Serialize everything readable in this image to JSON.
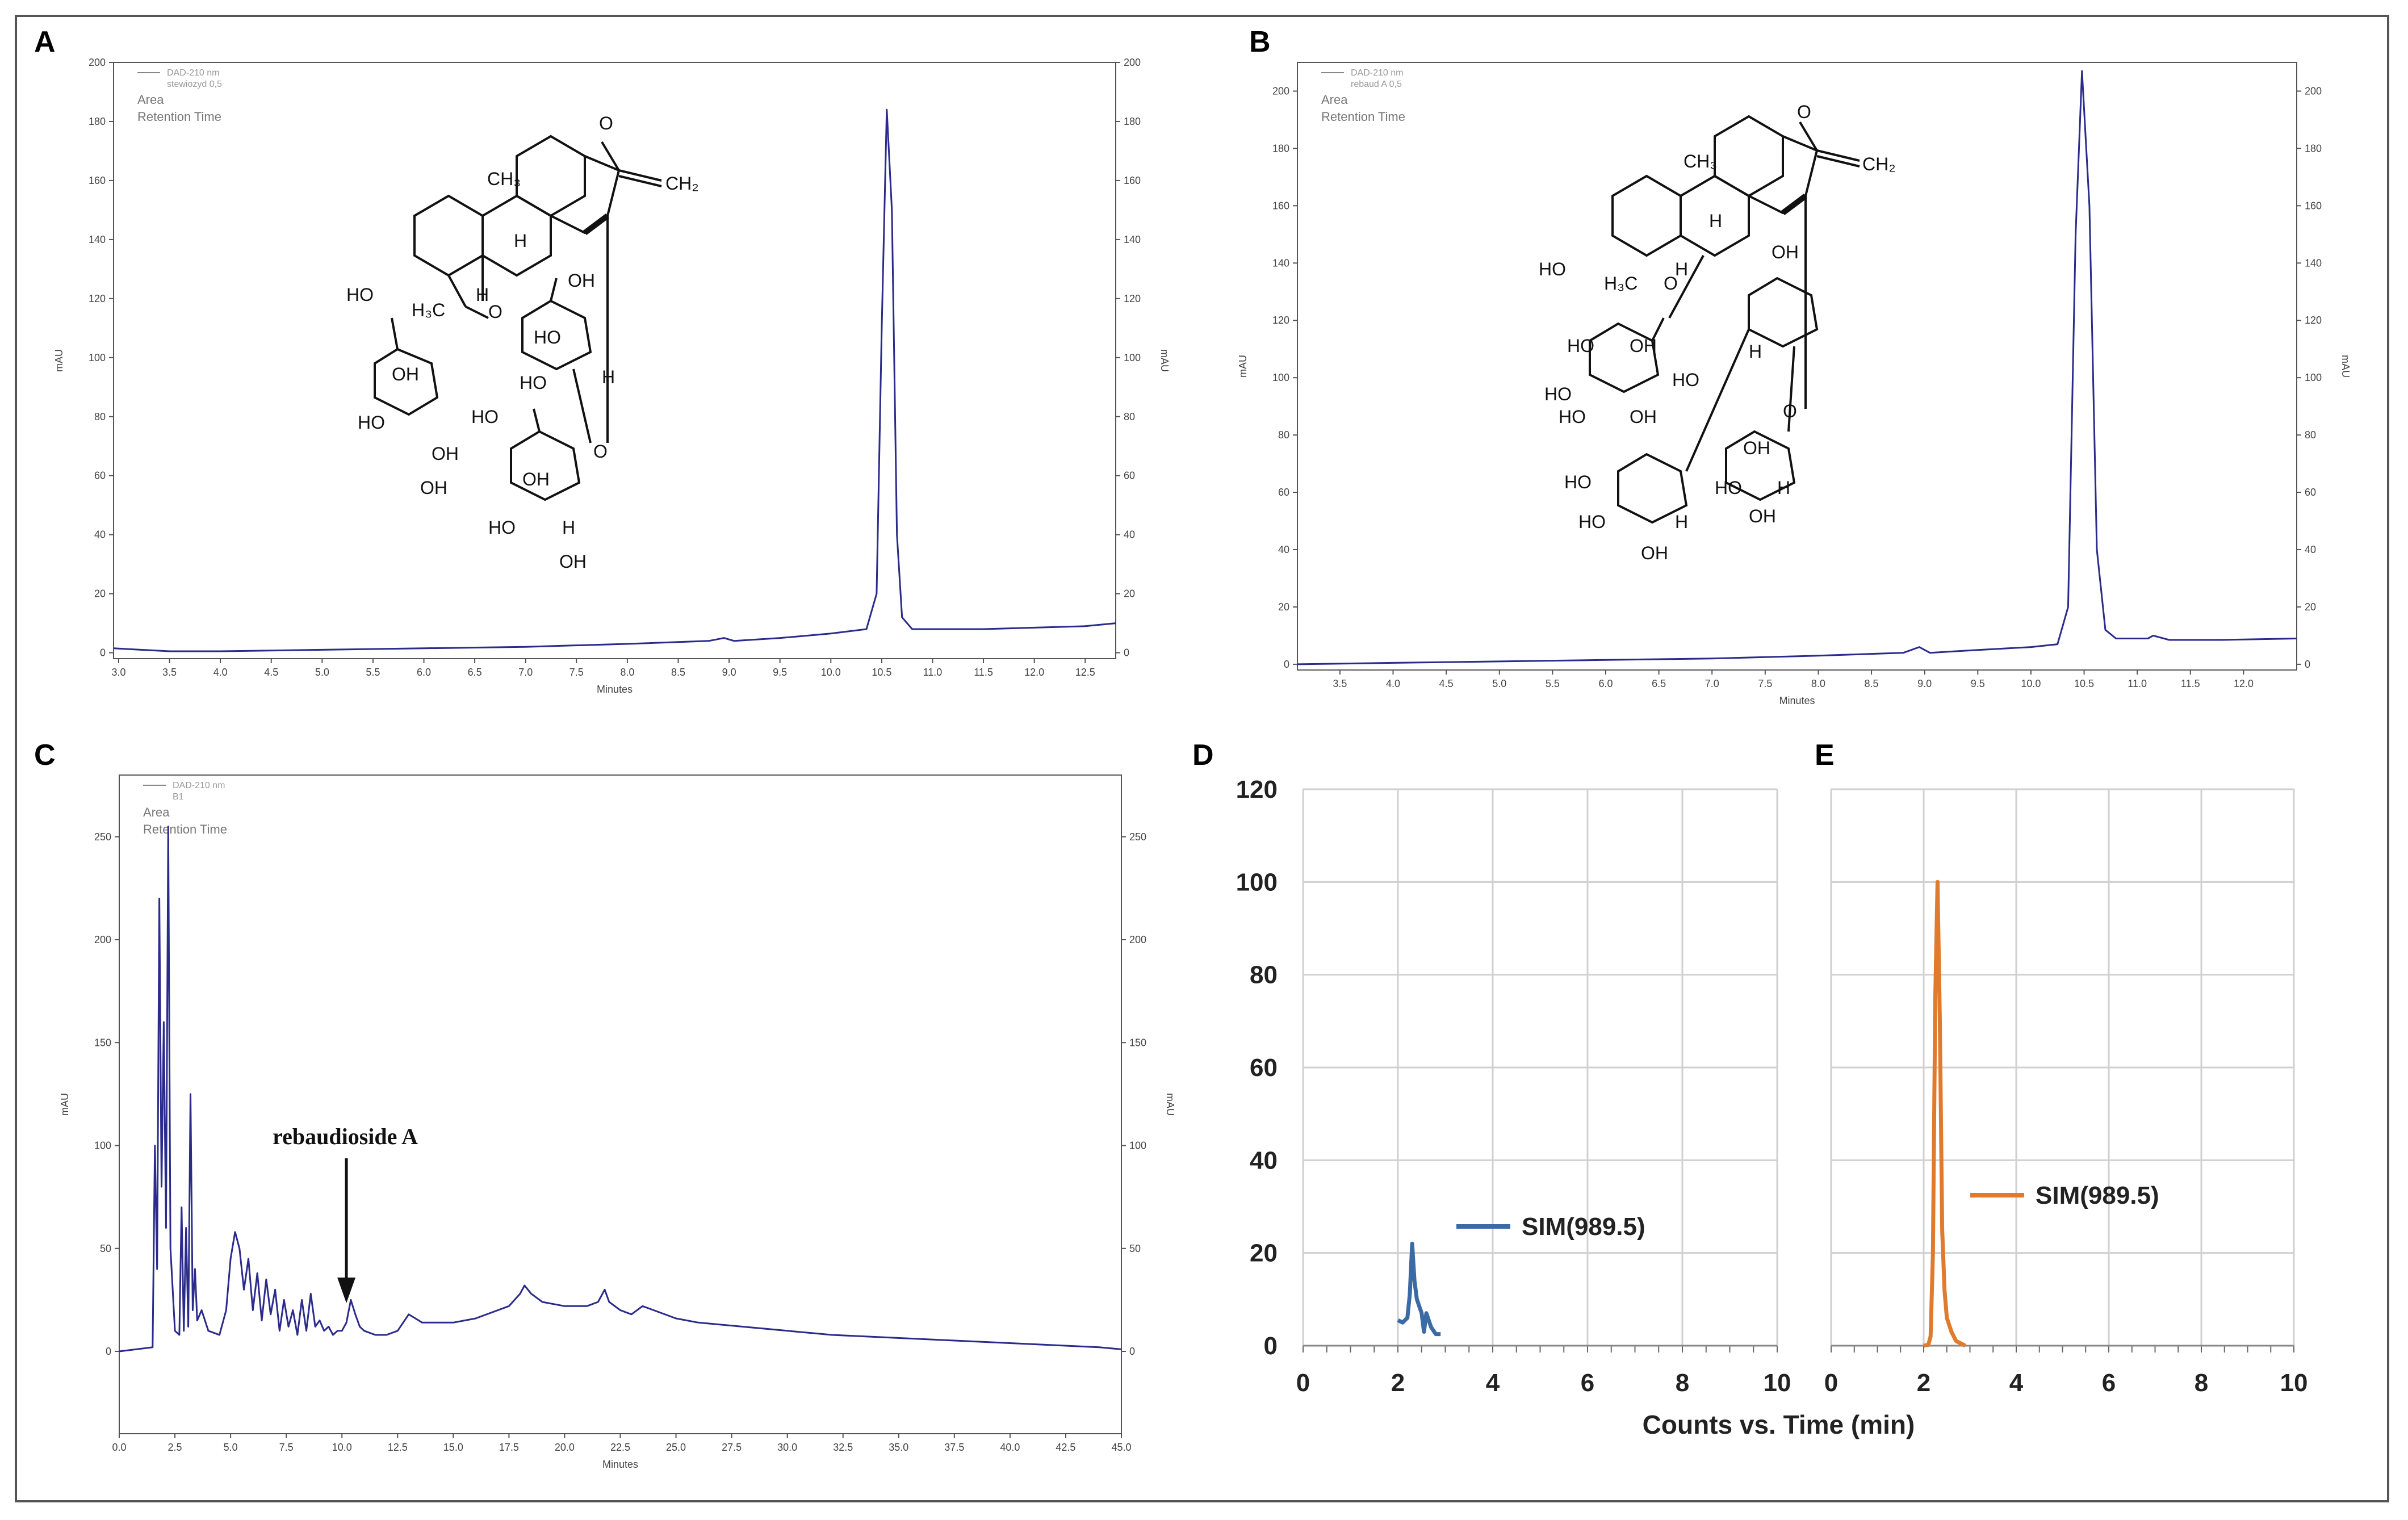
{
  "panels": {
    "A": {
      "label": "A"
    },
    "B": {
      "label": "B"
    },
    "C": {
      "label": "C"
    },
    "D": {
      "label": "D"
    },
    "E": {
      "label": "E"
    }
  },
  "chart_data": [
    {
      "id": "A",
      "type": "line",
      "legend": {
        "line1": "DAD-210 nm",
        "line2": "stewiozyd 0,5",
        "line3": "Area",
        "line4": "Retention Time"
      },
      "xlabel": "Minutes",
      "ylabel": "mAU",
      "ylabel_right": "mAU",
      "xlim": [
        2.95,
        12.8
      ],
      "ylim": [
        -2,
        200
      ],
      "xticks": [
        "3.0",
        "3.5",
        "4.0",
        "4.5",
        "5.0",
        "5.5",
        "6.0",
        "6.5",
        "7.0",
        "7.5",
        "8.0",
        "8.5",
        "9.0",
        "9.5",
        "10.0",
        "10.5",
        "11.0",
        "11.5",
        "12.0",
        "12.5"
      ],
      "yticks": [
        "0",
        "20",
        "40",
        "60",
        "80",
        "100",
        "120",
        "140",
        "160",
        "180",
        "200"
      ],
      "series": [
        {
          "name": "DAD-210 nm",
          "color": "#2b2b8c",
          "x": [
            2.95,
            3.5,
            4,
            5,
            6,
            7,
            8,
            8.8,
            8.95,
            9.05,
            9.5,
            10,
            10.35,
            10.45,
            10.5,
            10.55,
            10.6,
            10.65,
            10.7,
            10.8,
            11,
            11.5,
            12,
            12.5,
            12.8
          ],
          "y": [
            1.5,
            0.5,
            0.5,
            1,
            1.5,
            2,
            3,
            4,
            5,
            4,
            5,
            6.5,
            8,
            20,
            110,
            184,
            150,
            40,
            12,
            8,
            8,
            8,
            8.5,
            9,
            10
          ]
        }
      ],
      "structure": {
        "ch3": "CH₃",
        "ch2": "CH₂",
        "h3c": "H₃C",
        "o": "O",
        "h": "H",
        "ho": "HO",
        "oh": "OH"
      }
    },
    {
      "id": "B",
      "type": "line",
      "legend": {
        "line1": "DAD-210 nm",
        "line2": "rebaud A 0,5",
        "line3": "Area",
        "line4": "Retention Time"
      },
      "xlabel": "Minutes",
      "ylabel": "mAU",
      "ylabel_right": "mAU",
      "xlim": [
        3.1,
        12.5
      ],
      "ylim": [
        -2,
        210
      ],
      "xticks": [
        "3.5",
        "4.0",
        "4.5",
        "5.0",
        "5.5",
        "6.0",
        "6.5",
        "7.0",
        "7.5",
        "8.0",
        "8.5",
        "9.0",
        "9.5",
        "10.0",
        "10.5",
        "11.0",
        "11.5",
        "12.0"
      ],
      "yticks": [
        "0",
        "20",
        "40",
        "60",
        "80",
        "100",
        "120",
        "140",
        "160",
        "180",
        "200"
      ],
      "series": [
        {
          "name": "DAD-210 nm",
          "color": "#2b2b8c",
          "x": [
            3.1,
            4,
            5,
            6,
            7,
            8,
            8.8,
            8.95,
            9.05,
            9.5,
            10,
            10.25,
            10.35,
            10.42,
            10.48,
            10.55,
            10.62,
            10.7,
            10.8,
            11.1,
            11.15,
            11.3,
            11.8,
            12.5
          ],
          "y": [
            0,
            0.5,
            1,
            1.5,
            2,
            3,
            4,
            6,
            4,
            5,
            6,
            7,
            20,
            150,
            207,
            160,
            40,
            12,
            9,
            9,
            10,
            8.5,
            8.5,
            9
          ]
        }
      ],
      "structure": {
        "ch3": "CH₃",
        "ch2": "CH₂",
        "h3c": "H₃C",
        "o": "O",
        "h": "H",
        "ho": "HO",
        "oh": "OH"
      }
    },
    {
      "id": "C",
      "type": "line",
      "legend": {
        "line1": "DAD-210 nm",
        "line2": "B1",
        "line3": "Area",
        "line4": "Retention Time"
      },
      "xlabel": "Minutes",
      "ylabel": "mAU",
      "ylabel_right": "mAU",
      "xlim": [
        0,
        45
      ],
      "ylim": [
        -40,
        280
      ],
      "xticks": [
        "0.0",
        "2.5",
        "5.0",
        "7.5",
        "10.0",
        "12.5",
        "15.0",
        "17.5",
        "20.0",
        "22.5",
        "25.0",
        "27.5",
        "30.0",
        "32.5",
        "35.0",
        "37.5",
        "40.0",
        "42.5",
        "45.0"
      ],
      "yticks": [
        "0",
        "50",
        "100",
        "150",
        "200",
        "250"
      ],
      "annotation": "rebaudioside A",
      "series": [
        {
          "name": "DAD-210 nm",
          "color": "#2b2b8c",
          "x": [
            0,
            1.5,
            1.6,
            1.7,
            1.8,
            1.9,
            2.0,
            2.1,
            2.2,
            2.3,
            2.5,
            2.7,
            2.8,
            2.9,
            3.0,
            3.1,
            3.2,
            3.3,
            3.4,
            3.5,
            3.7,
            4.0,
            4.5,
            4.8,
            5.0,
            5.2,
            5.4,
            5.6,
            5.8,
            6.0,
            6.2,
            6.4,
            6.6,
            6.8,
            7.0,
            7.2,
            7.4,
            7.6,
            7.8,
            8.0,
            8.2,
            8.4,
            8.6,
            8.8,
            9.0,
            9.2,
            9.4,
            9.6,
            9.8,
            10.0,
            10.2,
            10.4,
            10.6,
            10.8,
            11.0,
            11.5,
            12.0,
            12.5,
            13.0,
            13.3,
            13.6,
            14,
            15,
            16,
            17,
            17.5,
            18,
            18.2,
            18.5,
            19,
            20,
            21,
            21.5,
            21.8,
            22,
            22.5,
            23,
            23.5,
            24,
            25,
            26,
            27,
            28,
            30,
            32,
            34,
            36,
            38,
            40,
            42,
            44,
            45
          ],
          "y": [
            0,
            2,
            100,
            40,
            220,
            80,
            160,
            60,
            255,
            50,
            10,
            8,
            70,
            10,
            60,
            12,
            125,
            20,
            40,
            15,
            20,
            10,
            8,
            20,
            45,
            58,
            50,
            30,
            45,
            20,
            38,
            15,
            35,
            18,
            30,
            10,
            25,
            12,
            20,
            8,
            25,
            10,
            28,
            12,
            15,
            10,
            12,
            8,
            10,
            10,
            14,
            25,
            18,
            12,
            10,
            8,
            8,
            10,
            18,
            16,
            14,
            14,
            14,
            16,
            20,
            22,
            28,
            32,
            28,
            24,
            22,
            22,
            24,
            30,
            24,
            20,
            18,
            22,
            20,
            16,
            14,
            13,
            12,
            10,
            8,
            7,
            6,
            5,
            4,
            3,
            2,
            1
          ]
        }
      ]
    },
    {
      "id": "D",
      "type": "line",
      "xlim": [
        0,
        10
      ],
      "ylim": [
        0,
        120
      ],
      "xticks": [
        "0",
        "2",
        "4",
        "6",
        "8",
        "10"
      ],
      "yticks": [
        "0",
        "20",
        "40",
        "60",
        "80",
        "100",
        "120"
      ],
      "legend": "SIM(989.5)",
      "series": [
        {
          "name": "SIM(989.5)",
          "color": "#3b6ba5",
          "x": [
            2.0,
            2.1,
            2.2,
            2.25,
            2.3,
            2.35,
            2.4,
            2.5,
            2.55,
            2.6,
            2.7,
            2.8,
            2.9
          ],
          "y": [
            5.5,
            5,
            6,
            11,
            22,
            14,
            10,
            7,
            3,
            7,
            4,
            2.5,
            2.5
          ]
        }
      ]
    },
    {
      "id": "E",
      "type": "line",
      "xlim": [
        0,
        10
      ],
      "ylim": [
        0,
        120
      ],
      "xticks": [
        "0",
        "2",
        "4",
        "6",
        "8",
        "10"
      ],
      "xlabel": "Counts vs. Time (min)",
      "legend": "SIM(989.5)",
      "series": [
        {
          "name": "SIM(989.5)",
          "color": "#e07b2e",
          "x": [
            2.0,
            2.1,
            2.15,
            2.2,
            2.25,
            2.3,
            2.35,
            2.4,
            2.45,
            2.5,
            2.6,
            2.7,
            2.8,
            2.9
          ],
          "y": [
            0,
            0.2,
            2,
            20,
            75,
            100,
            70,
            25,
            12,
            6,
            3,
            1,
            0.5,
            0
          ]
        }
      ]
    }
  ]
}
